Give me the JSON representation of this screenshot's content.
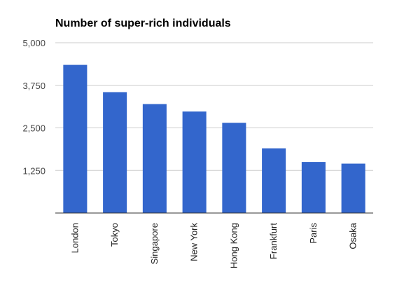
{
  "chart_data": {
    "type": "bar",
    "title": "Number of super-rich individuals",
    "xlabel": "",
    "ylabel": "",
    "categories": [
      "London",
      "Tokyo",
      "Singapore",
      "New York",
      "Hong Kong",
      "Frankfurt",
      "Paris",
      "Osaka"
    ],
    "values": [
      4350,
      3550,
      3200,
      2980,
      2650,
      1900,
      1500,
      1450
    ],
    "ylim": [
      0,
      5000
    ],
    "yticks": [
      1250,
      2500,
      3750,
      5000
    ],
    "ytick_labels": [
      "1,250",
      "2,500",
      "3,750",
      "5,000"
    ],
    "grid": true,
    "legend": "none",
    "bar_color": "#3366cc"
  }
}
